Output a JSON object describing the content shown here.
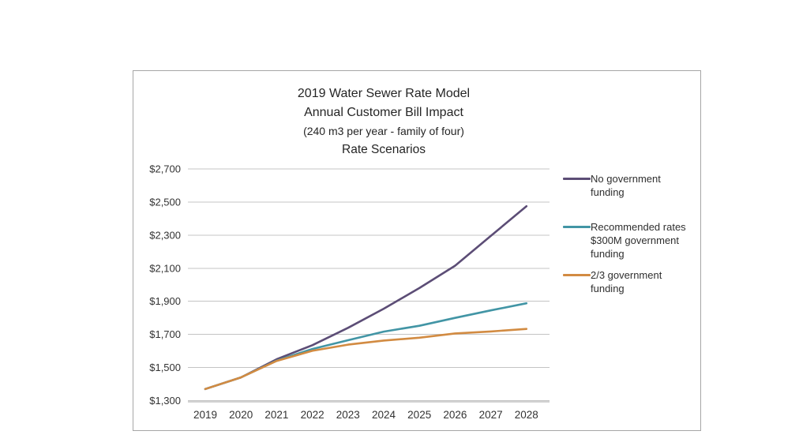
{
  "window": {
    "background": "#ffffff"
  },
  "chart": {
    "title_lines": [
      "2019 Water Sewer Rate Model",
      "Annual Customer Bill Impact",
      "(240 m3 per year - family of four)",
      "Rate Scenarios"
    ]
  },
  "chart_data": {
    "type": "line",
    "title": "2019 Water Sewer Rate Model",
    "subtitle": "Annual Customer Bill Impact (240 m3 per year - family of four) Rate Scenarios",
    "x": [
      "2019",
      "2020",
      "2021",
      "2022",
      "2023",
      "2024",
      "2025",
      "2026",
      "2027",
      "2028"
    ],
    "xlabel": "",
    "ylabel": "",
    "ylim": [
      1300,
      2700
    ],
    "ytick_step": 200,
    "ytick_labels": [
      "$1,300",
      "$1,500",
      "$1,700",
      "$1,900",
      "$2,100",
      "$2,300",
      "$2,500",
      "$2,700"
    ],
    "grid": true,
    "legend_position": "right",
    "series": [
      {
        "name": "No government funding",
        "color": "#5c4d76",
        "values": [
          1370,
          1440,
          1550,
          1635,
          1740,
          1855,
          1980,
          2115,
          2295,
          2475
        ]
      },
      {
        "name": "Recommended rates $300M government funding",
        "color": "#4295a5",
        "values": [
          1370,
          1440,
          1542,
          1612,
          1665,
          1717,
          1752,
          1800,
          1845,
          1888
        ]
      },
      {
        "name": "2/3 government funding",
        "color": "#d28b42",
        "values": [
          1370,
          1440,
          1540,
          1601,
          1638,
          1663,
          1680,
          1706,
          1718,
          1733
        ]
      }
    ],
    "style": {
      "gridline_color": "#c4c4c4",
      "axis_color": "#a6a6a6",
      "tick_label_color": "#333333",
      "title_color": "#252525"
    }
  }
}
